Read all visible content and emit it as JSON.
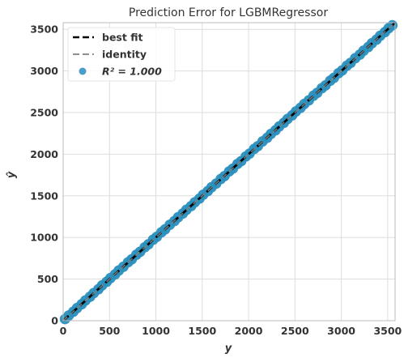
{
  "chart_data": {
    "type": "scatter",
    "title": "Prediction Error for LGBMRegressor",
    "xlabel": "y",
    "ylabel": "ŷ",
    "xlim": [
      0,
      3580
    ],
    "ylim": [
      0,
      3580
    ],
    "xticks": [
      0,
      500,
      1000,
      1500,
      2000,
      2500,
      3000,
      3500
    ],
    "yticks": [
      0,
      500,
      1000,
      1500,
      2000,
      2500,
      3000,
      3500
    ],
    "grid": true,
    "legend_position": "top-left",
    "legend": [
      {
        "label": "best fit",
        "style": "dashed",
        "color": "#000000"
      },
      {
        "label": "identity",
        "style": "dashed",
        "color": "#7f7f7f"
      },
      {
        "label": "R² = 1.000",
        "style": "marker",
        "color": "#4c9cc8"
      }
    ],
    "series": [
      {
        "name": "R² = 1.000",
        "color": "#2a8fbd",
        "points": [
          [
            20,
            20
          ],
          [
            60,
            62
          ],
          [
            110,
            108
          ],
          [
            150,
            152
          ],
          [
            200,
            198
          ],
          [
            240,
            243
          ],
          [
            290,
            288
          ],
          [
            330,
            332
          ],
          [
            380,
            378
          ],
          [
            420,
            424
          ],
          [
            470,
            468
          ],
          [
            510,
            512
          ],
          [
            560,
            557
          ],
          [
            600,
            603
          ],
          [
            650,
            648
          ],
          [
            700,
            702
          ],
          [
            740,
            738
          ],
          [
            790,
            793
          ],
          [
            830,
            828
          ],
          [
            880,
            882
          ],
          [
            920,
            918
          ],
          [
            970,
            973
          ],
          [
            1010,
            1008
          ],
          [
            1060,
            1063
          ],
          [
            1100,
            1098
          ],
          [
            1150,
            1152
          ],
          [
            1200,
            1197
          ],
          [
            1240,
            1243
          ],
          [
            1290,
            1288
          ],
          [
            1330,
            1333
          ],
          [
            1380,
            1377
          ],
          [
            1420,
            1423
          ],
          [
            1470,
            1467
          ],
          [
            1510,
            1513
          ],
          [
            1560,
            1557
          ],
          [
            1600,
            1603
          ],
          [
            1650,
            1647
          ],
          [
            1700,
            1702
          ],
          [
            1740,
            1737
          ],
          [
            1790,
            1793
          ],
          [
            1830,
            1827
          ],
          [
            1880,
            1883
          ],
          [
            1920,
            1917
          ],
          [
            1970,
            1973
          ],
          [
            2010,
            2007
          ],
          [
            2060,
            2063
          ],
          [
            2100,
            2097
          ],
          [
            2150,
            2153
          ],
          [
            2200,
            2197
          ],
          [
            2240,
            2243
          ],
          [
            2290,
            2287
          ],
          [
            2330,
            2333
          ],
          [
            2380,
            2377
          ],
          [
            2420,
            2423
          ],
          [
            2470,
            2467
          ],
          [
            2510,
            2513
          ],
          [
            2560,
            2557
          ],
          [
            2600,
            2603
          ],
          [
            2650,
            2647
          ],
          [
            2700,
            2703
          ],
          [
            2740,
            2737
          ],
          [
            2790,
            2793
          ],
          [
            2830,
            2827
          ],
          [
            2880,
            2883
          ],
          [
            2920,
            2917
          ],
          [
            2970,
            2973
          ],
          [
            3010,
            3007
          ],
          [
            3060,
            3063
          ],
          [
            3100,
            3097
          ],
          [
            3150,
            3153
          ],
          [
            3200,
            3197
          ],
          [
            3240,
            3243
          ],
          [
            3290,
            3287
          ],
          [
            3330,
            3333
          ],
          [
            3380,
            3377
          ],
          [
            3420,
            3423
          ],
          [
            3470,
            3467
          ],
          [
            3510,
            3513
          ],
          [
            3550,
            3548
          ]
        ]
      }
    ],
    "lines": [
      {
        "name": "best fit",
        "x": [
          0,
          3580
        ],
        "y": [
          0,
          3580
        ],
        "color": "#000000"
      },
      {
        "name": "identity",
        "x": [
          0,
          3580
        ],
        "y": [
          0,
          3580
        ],
        "color": "#7f7f7f"
      }
    ]
  }
}
